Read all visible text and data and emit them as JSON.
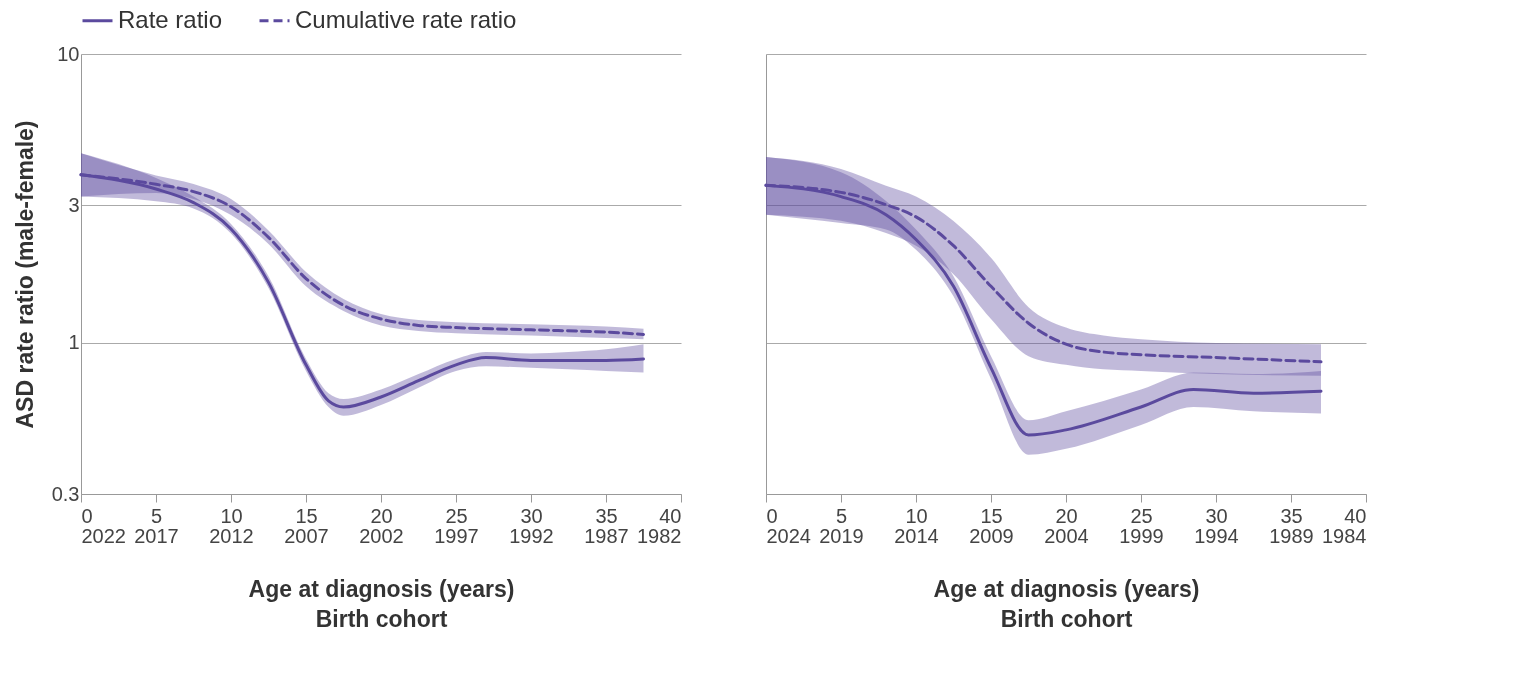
{
  "chart_data": [
    {
      "type": "line",
      "ylabel": "ASD rate ratio (male-female)",
      "xlabel": "Age at diagnosis (years)",
      "x2label": "Birth cohort",
      "log": true,
      "grid": "y",
      "legend": "top left",
      "xlim": [
        0,
        40
      ],
      "xticks": [
        0,
        5,
        10,
        15,
        20,
        25,
        30,
        35,
        40
      ],
      "x2lim": [
        2022,
        1982
      ],
      "x2ticks": [
        2022,
        2017,
        2012,
        2007,
        2002,
        1997,
        1992,
        1987,
        1982
      ],
      "ylim": [
        0.3,
        10
      ],
      "yticks": [
        0.3,
        1,
        3,
        10
      ],
      "series": [
        {
          "name": "Rate ratio",
          "color": "#5b4a9e",
          "line_style": "solid",
          "x": [
            0,
            5,
            7.5,
            10,
            12.5,
            15,
            16.5,
            17.5,
            20,
            22.5,
            25,
            27,
            30,
            32.5,
            35,
            37.5
          ],
          "values": [
            3.82,
            3.41,
            3.06,
            2.48,
            1.62,
            0.84,
            0.63,
            0.6,
            0.65,
            0.74,
            0.84,
            0.89,
            0.87,
            0.87,
            0.87,
            0.88
          ],
          "lower": [
            3.21,
            3.09,
            2.92,
            2.39,
            1.55,
            0.8,
            0.6,
            0.56,
            0.61,
            0.7,
            0.8,
            0.83,
            0.82,
            0.81,
            0.8,
            0.79
          ],
          "upper": [
            4.53,
            3.72,
            3.21,
            2.58,
            1.7,
            0.88,
            0.67,
            0.64,
            0.69,
            0.78,
            0.88,
            0.93,
            0.92,
            0.93,
            0.95,
            0.99
          ]
        },
        {
          "name": "Cumulative rate ratio",
          "color": "#5b4a9e",
          "line_style": "dashed",
          "x": [
            0,
            5,
            7.5,
            10,
            12.5,
            15,
            17.5,
            20,
            22.5,
            25,
            30,
            35,
            37.5
          ],
          "values": [
            3.82,
            3.54,
            3.34,
            2.96,
            2.32,
            1.67,
            1.35,
            1.21,
            1.15,
            1.13,
            1.11,
            1.09,
            1.07
          ],
          "lower": [
            3.21,
            3.3,
            3.15,
            2.77,
            2.2,
            1.57,
            1.29,
            1.15,
            1.1,
            1.08,
            1.06,
            1.04,
            1.03
          ],
          "upper": [
            4.53,
            3.8,
            3.55,
            3.15,
            2.45,
            1.76,
            1.42,
            1.26,
            1.2,
            1.18,
            1.16,
            1.14,
            1.12
          ]
        }
      ]
    },
    {
      "type": "line",
      "xlabel": "Age at diagnosis (years)",
      "x2label": "Birth cohort",
      "log": true,
      "grid": "y",
      "tick_labels": "x",
      "xlim": [
        0,
        40
      ],
      "xticks": [
        0,
        5,
        10,
        15,
        20,
        25,
        30,
        35,
        40
      ],
      "x2lim": [
        2024,
        1984
      ],
      "x2ticks": [
        2024,
        2019,
        2014,
        2009,
        2004,
        1999,
        1994,
        1989,
        1984
      ],
      "ylim": [
        0.3,
        10
      ],
      "yticks": [
        0.3,
        1,
        3,
        10
      ],
      "series": [
        {
          "color": "#5b4a9e",
          "line_style": "solid",
          "x": [
            0,
            5,
            8,
            10,
            12.5,
            15,
            17.5,
            20,
            25,
            28.5,
            32.5,
            37
          ],
          "values": [
            3.51,
            3.21,
            2.78,
            2.28,
            1.57,
            0.82,
            0.48,
            0.5,
            0.6,
            0.69,
            0.67,
            0.68
          ],
          "lower": [
            2.78,
            2.6,
            2.47,
            2.1,
            1.45,
            0.75,
            0.41,
            0.43,
            0.52,
            0.6,
            0.58,
            0.57
          ],
          "upper": [
            4.4,
            3.9,
            3.1,
            2.47,
            1.7,
            0.9,
            0.54,
            0.58,
            0.69,
            0.79,
            0.78,
            0.8
          ]
        },
        {
          "color": "#5b4a9e",
          "line_style": "dashed",
          "x": [
            0,
            5,
            8,
            10,
            12.5,
            15,
            17.5,
            20,
            22.5,
            25,
            30,
            37
          ],
          "values": [
            3.51,
            3.32,
            3.01,
            2.73,
            2.17,
            1.57,
            1.17,
            0.99,
            0.93,
            0.91,
            0.89,
            0.86
          ],
          "lower": [
            2.78,
            2.65,
            2.4,
            2.17,
            1.73,
            1.21,
            0.9,
            0.84,
            0.81,
            0.8,
            0.78,
            0.77
          ],
          "upper": [
            4.4,
            4.0,
            3.5,
            3.21,
            2.64,
            1.97,
            1.33,
            1.13,
            1.06,
            1.03,
            1.0,
            0.99
          ]
        }
      ]
    }
  ]
}
